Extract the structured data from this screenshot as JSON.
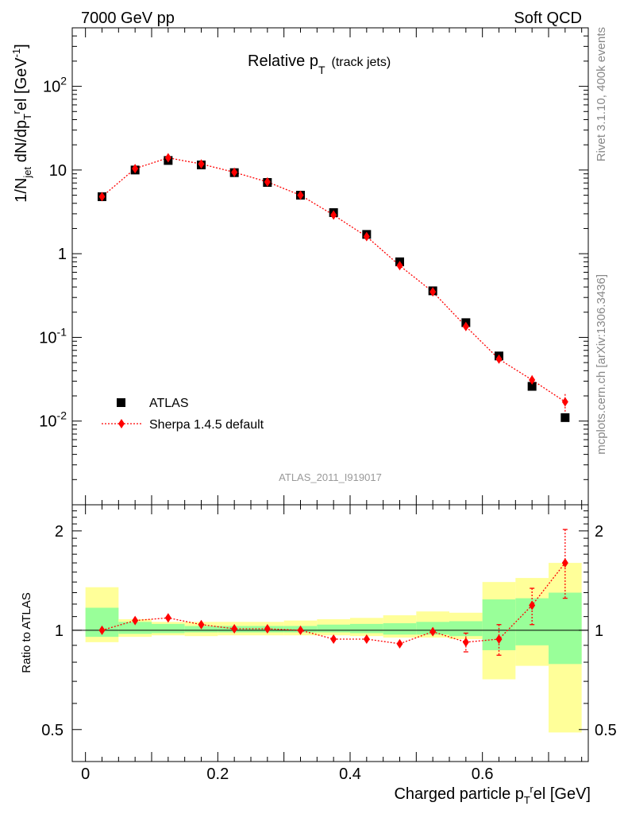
{
  "header": {
    "left": "7000 GeV pp",
    "right": "Soft QCD"
  },
  "side_labels": {
    "rivet": "Rivet 3.1.10,  400k events",
    "mcplots": "mcplots.cern.ch [arXiv:1306.3436]"
  },
  "colors": {
    "data": "#000000",
    "mc": "#ff0000",
    "band_inner": "#99ff99",
    "band_outer": "#ffff99",
    "watermark": "#999999"
  },
  "chart_data": [
    {
      "id": "main",
      "type": "scatter",
      "title_main": "Relative p",
      "title_sub": "T",
      "title_extra": "(track jets)",
      "yscale": "log",
      "ylim": [
        0.001,
        500
      ],
      "xlim": [
        -0.02,
        0.76
      ],
      "ylabel_parts": [
        "1/N",
        "jet",
        " dN/dp",
        "T",
        "r",
        "el [GeV",
        "-1",
        "]"
      ],
      "ytick_labels": [
        {
          "value": 0.01,
          "base": "10",
          "exp": "-2"
        },
        {
          "value": 0.1,
          "base": "10",
          "exp": "-1"
        },
        {
          "value": 1,
          "base": "1",
          "exp": ""
        },
        {
          "value": 10,
          "base": "10",
          "exp": ""
        },
        {
          "value": 100,
          "base": "10",
          "exp": "2"
        }
      ],
      "legend": [
        {
          "name": "ATLAS",
          "marker": "square"
        },
        {
          "name": "Sherpa 1.4.5 default",
          "marker": "diamond"
        }
      ],
      "legend_position": "bottom-left",
      "watermark": "ATLAS_2011_I919017",
      "series": [
        {
          "name": "ATLAS",
          "x": [
            0.025,
            0.075,
            0.125,
            0.175,
            0.225,
            0.275,
            0.325,
            0.375,
            0.425,
            0.475,
            0.525,
            0.575,
            0.625,
            0.675,
            0.725
          ],
          "y": [
            4.8,
            10.0,
            13.0,
            11.5,
            9.3,
            7.1,
            5.0,
            3.1,
            1.7,
            0.8,
            0.36,
            0.15,
            0.06,
            0.026,
            0.011
          ]
        },
        {
          "name": "Sherpa 1.4.5 default",
          "x": [
            0.025,
            0.075,
            0.125,
            0.175,
            0.225,
            0.275,
            0.325,
            0.375,
            0.425,
            0.475,
            0.525,
            0.575,
            0.625,
            0.675,
            0.725
          ],
          "y": [
            4.8,
            10.4,
            14.0,
            11.8,
            9.4,
            7.2,
            5.0,
            2.9,
            1.6,
            0.72,
            0.35,
            0.135,
            0.055,
            0.031,
            0.017
          ],
          "err": [
            0.1,
            0.2,
            0.3,
            0.2,
            0.2,
            0.15,
            0.1,
            0.06,
            0.03,
            0.02,
            0.01,
            0.006,
            0.005,
            0.004,
            0.004
          ]
        }
      ]
    },
    {
      "id": "ratio",
      "type": "scatter",
      "yscale": "log",
      "ylim": [
        0.4,
        2.4
      ],
      "xlim": [
        -0.02,
        0.76
      ],
      "ylabel": "Ratio to ATLAS",
      "xlabel_parts": [
        "Charged particle p",
        "T",
        "r",
        "el [GeV]"
      ],
      "xtick_labels": [
        {
          "value": 0,
          "label": "0"
        },
        {
          "value": 0.2,
          "label": "0.2"
        },
        {
          "value": 0.4,
          "label": "0.4"
        },
        {
          "value": 0.6,
          "label": "0.6"
        }
      ],
      "ytick_labels": [
        {
          "value": 0.5,
          "label": "0.5"
        },
        {
          "value": 1,
          "label": "1"
        },
        {
          "value": 2,
          "label": "2"
        }
      ],
      "bins": [
        0,
        0.05,
        0.1,
        0.15,
        0.2,
        0.25,
        0.3,
        0.35,
        0.4,
        0.45,
        0.5,
        0.55,
        0.6,
        0.65,
        0.7,
        0.75
      ],
      "band_inner": [
        [
          0.955,
          1.17
        ],
        [
          0.975,
          1.06
        ],
        [
          0.98,
          1.045
        ],
        [
          0.985,
          1.03
        ],
        [
          0.985,
          1.03
        ],
        [
          0.985,
          1.03
        ],
        [
          0.985,
          1.03
        ],
        [
          0.985,
          1.04
        ],
        [
          0.98,
          1.045
        ],
        [
          0.97,
          1.05
        ],
        [
          0.97,
          1.06
        ],
        [
          0.96,
          1.065
        ],
        [
          0.87,
          1.24
        ],
        [
          0.9,
          1.25
        ],
        [
          0.79,
          1.3
        ]
      ],
      "band_outer": [
        [
          0.92,
          1.35
        ],
        [
          0.955,
          1.08
        ],
        [
          0.965,
          1.06
        ],
        [
          0.96,
          1.06
        ],
        [
          0.965,
          1.06
        ],
        [
          0.965,
          1.06
        ],
        [
          0.965,
          1.07
        ],
        [
          0.965,
          1.08
        ],
        [
          0.96,
          1.09
        ],
        [
          0.95,
          1.11
        ],
        [
          0.95,
          1.14
        ],
        [
          0.94,
          1.13
        ],
        [
          0.71,
          1.4
        ],
        [
          0.78,
          1.44
        ],
        [
          0.49,
          1.6
        ]
      ],
      "series": [
        {
          "name": "Sherpa 1.4.5 default",
          "x": [
            0.025,
            0.075,
            0.125,
            0.175,
            0.225,
            0.275,
            0.325,
            0.375,
            0.425,
            0.475,
            0.525,
            0.575,
            0.625,
            0.675,
            0.725
          ],
          "y": [
            1.0,
            1.07,
            1.09,
            1.04,
            1.01,
            1.01,
            1.0,
            0.94,
            0.94,
            0.91,
            0.99,
            0.92,
            0.94,
            1.19,
            1.6
          ],
          "err_low": [
            0.01,
            0.01,
            0.01,
            0.01,
            0.01,
            0.01,
            0.01,
            0.01,
            0.01,
            0.02,
            0.03,
            0.06,
            0.1,
            0.15,
            0.35
          ],
          "err_high": [
            0.01,
            0.01,
            0.01,
            0.01,
            0.01,
            0.01,
            0.01,
            0.01,
            0.01,
            0.02,
            0.03,
            0.06,
            0.1,
            0.15,
            0.42
          ]
        }
      ]
    }
  ]
}
